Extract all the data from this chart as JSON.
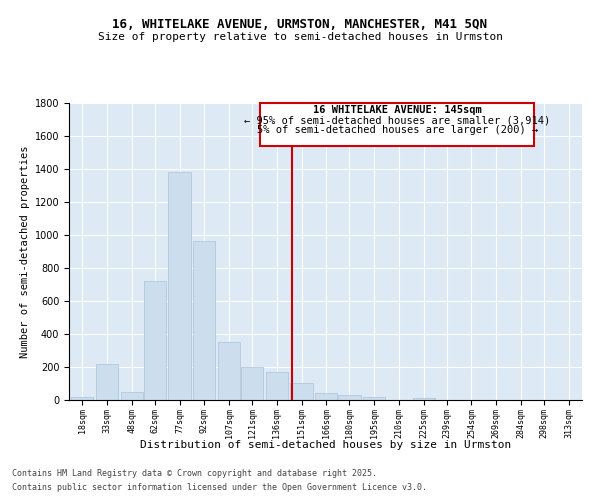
{
  "title_line1": "16, WHITELAKE AVENUE, URMSTON, MANCHESTER, M41 5QN",
  "title_line2": "Size of property relative to semi-detached houses in Urmston",
  "xlabel": "Distribution of semi-detached houses by size in Urmston",
  "ylabel": "Number of semi-detached properties",
  "footer_line1": "Contains HM Land Registry data © Crown copyright and database right 2025.",
  "footer_line2": "Contains public sector information licensed under the Open Government Licence v3.0.",
  "annotation_line1": "16 WHITELAKE AVENUE: 145sqm",
  "annotation_line2": "← 95% of semi-detached houses are smaller (3,914)",
  "annotation_line3": "5% of semi-detached houses are larger (200) →",
  "property_size_label": "151sqm",
  "vline_x_index": 9,
  "bar_color": "#ccdded",
  "bar_edge_color": "#aac4d8",
  "vline_color": "#cc0000",
  "annotation_box_color": "#cc0000",
  "background_color": "#ddeaf5",
  "grid_color": "#ffffff",
  "categories": [
    "18sqm",
    "33sqm",
    "48sqm",
    "62sqm",
    "77sqm",
    "92sqm",
    "107sqm",
    "121sqm",
    "136sqm",
    "151sqm",
    "166sqm",
    "180sqm",
    "195sqm",
    "210sqm",
    "225sqm",
    "239sqm",
    "254sqm",
    "269sqm",
    "284sqm",
    "298sqm",
    "313sqm"
  ],
  "values": [
    20,
    220,
    50,
    720,
    1380,
    960,
    350,
    200,
    170,
    100,
    40,
    30,
    20,
    0,
    10,
    0,
    0,
    0,
    0,
    0,
    0
  ],
  "ylim": [
    0,
    1800
  ],
  "yticks": [
    0,
    200,
    400,
    600,
    800,
    1000,
    1200,
    1400,
    1600,
    1800
  ],
  "title_fontsize": 9,
  "subtitle_fontsize": 8,
  "ylabel_fontsize": 7.5,
  "xlabel_fontsize": 8,
  "tick_fontsize": 7,
  "xtick_fontsize": 6,
  "footer_fontsize": 6,
  "ann_fontsize": 7.5
}
